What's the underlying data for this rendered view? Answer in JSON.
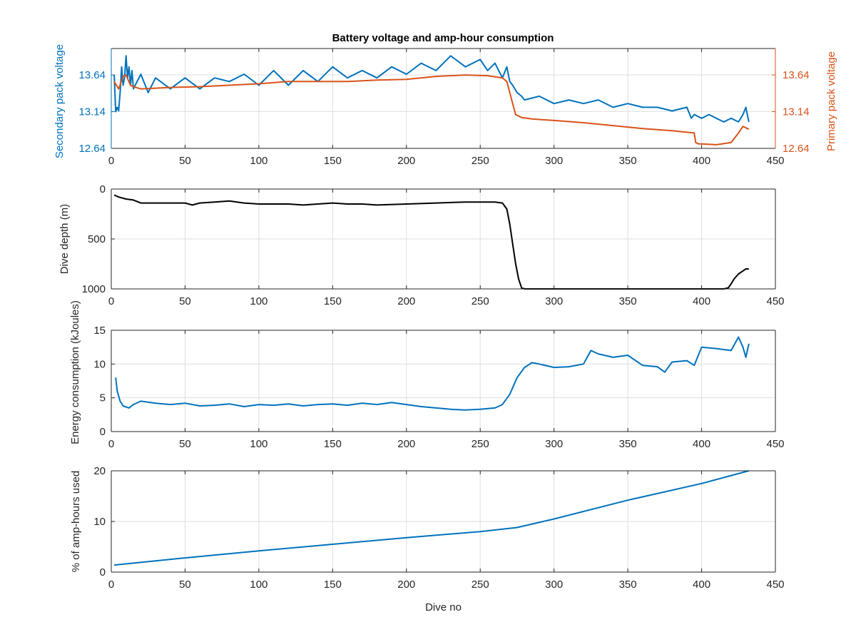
{
  "figure": {
    "title": "Battery voltage and amp-hour consumption",
    "xlabel_bottom": "Dive no"
  },
  "colors": {
    "secondary": "#0072BD",
    "primary": "#D95319",
    "depth": "#000000",
    "axis": "#262626",
    "grid": "#dfdfdf"
  },
  "chart_data": [
    {
      "type": "line",
      "title": "Battery voltage and amp-hour consumption",
      "xlabel": "",
      "xlim": [
        0,
        450
      ],
      "xticks": [
        0,
        50,
        100,
        150,
        200,
        250,
        300,
        350,
        400,
        450
      ],
      "grid": true,
      "left_axis": {
        "ylabel": "Secondary pack voltage",
        "ylim": [
          12.64,
          14.0
        ],
        "yticks": [
          "12.64",
          "13.14",
          "13.64"
        ]
      },
      "right_axis": {
        "ylabel": "Primary pack voltage",
        "ylim": [
          12.64,
          14.0
        ],
        "yticks": [
          "12.64",
          "13.14",
          "13.64"
        ]
      },
      "series": [
        {
          "axis": "left",
          "x": [
            2,
            3,
            4,
            5,
            6,
            7,
            8,
            9,
            10,
            11,
            12,
            13,
            14,
            15,
            20,
            25,
            30,
            40,
            50,
            60,
            70,
            80,
            90,
            100,
            110,
            120,
            130,
            140,
            150,
            160,
            170,
            180,
            190,
            200,
            210,
            220,
            230,
            240,
            250,
            255,
            260,
            265,
            268,
            270,
            272,
            275,
            278,
            280,
            290,
            300,
            310,
            320,
            330,
            340,
            350,
            360,
            370,
            380,
            390,
            393,
            395,
            400,
            405,
            410,
            415,
            420,
            425,
            428,
            430,
            432
          ],
          "y": [
            13.64,
            13.14,
            13.2,
            13.15,
            13.4,
            13.75,
            13.5,
            13.6,
            13.9,
            13.6,
            13.75,
            13.5,
            13.7,
            13.45,
            13.65,
            13.4,
            13.6,
            13.45,
            13.6,
            13.45,
            13.6,
            13.55,
            13.65,
            13.5,
            13.7,
            13.5,
            13.7,
            13.55,
            13.75,
            13.6,
            13.7,
            13.6,
            13.75,
            13.65,
            13.8,
            13.7,
            13.9,
            13.75,
            13.85,
            13.7,
            13.8,
            13.6,
            13.75,
            13.55,
            13.5,
            13.4,
            13.35,
            13.3,
            13.35,
            13.25,
            13.3,
            13.25,
            13.3,
            13.2,
            13.25,
            13.2,
            13.2,
            13.15,
            13.2,
            13.05,
            13.1,
            13.05,
            13.1,
            13.05,
            13.0,
            13.05,
            13.0,
            13.1,
            13.2,
            13.0
          ]
        },
        {
          "axis": "right",
          "x": [
            2,
            5,
            8,
            10,
            13,
            15,
            20,
            40,
            60,
            80,
            100,
            120,
            140,
            160,
            180,
            200,
            220,
            240,
            255,
            265,
            268,
            270,
            272,
            274,
            276,
            278,
            285,
            300,
            320,
            340,
            360,
            380,
            390,
            395,
            396,
            398,
            400,
            410,
            420,
            425,
            428,
            430,
            432
          ],
          "y": [
            13.55,
            13.45,
            13.62,
            13.64,
            13.5,
            13.48,
            13.45,
            13.47,
            13.48,
            13.5,
            13.52,
            13.55,
            13.55,
            13.55,
            13.57,
            13.58,
            13.62,
            13.64,
            13.63,
            13.6,
            13.55,
            13.4,
            13.25,
            13.1,
            13.08,
            13.06,
            13.04,
            13.02,
            12.99,
            12.95,
            12.91,
            12.88,
            12.86,
            12.85,
            12.72,
            12.7,
            12.7,
            12.69,
            12.72,
            12.85,
            12.94,
            12.92,
            12.9
          ]
        }
      ]
    },
    {
      "type": "line",
      "xlabel": "",
      "ylabel": "Dive depth (m)",
      "xlim": [
        0,
        450
      ],
      "ylim": [
        0,
        1000
      ],
      "y_reversed": true,
      "xticks": [
        0,
        50,
        100,
        150,
        200,
        250,
        300,
        350,
        400,
        450
      ],
      "yticks": [
        0,
        500,
        1000
      ],
      "ytick_labels": [
        "0",
        "500",
        "1000"
      ],
      "grid": true,
      "series": [
        {
          "x": [
            2,
            5,
            10,
            15,
            20,
            30,
            40,
            50,
            55,
            60,
            70,
            80,
            90,
            100,
            110,
            120,
            130,
            140,
            150,
            160,
            170,
            180,
            200,
            220,
            240,
            250,
            260,
            265,
            268,
            270,
            272,
            274,
            276,
            278,
            280,
            290,
            300,
            320,
            340,
            360,
            380,
            400,
            410,
            415,
            418,
            420,
            422,
            425,
            428,
            430,
            432
          ],
          "y": [
            60,
            80,
            100,
            110,
            140,
            140,
            140,
            140,
            160,
            140,
            130,
            120,
            140,
            150,
            150,
            150,
            160,
            150,
            140,
            150,
            150,
            160,
            150,
            140,
            130,
            130,
            130,
            140,
            200,
            350,
            550,
            750,
            900,
            990,
            1000,
            1000,
            1000,
            1000,
            1000,
            1000,
            1000,
            1000,
            1000,
            1000,
            990,
            950,
            900,
            850,
            820,
            800,
            800
          ]
        }
      ]
    },
    {
      "type": "line",
      "xlabel": "",
      "ylabel": "Energy consumption (kJoules)",
      "xlim": [
        0,
        450
      ],
      "ylim": [
        0,
        15
      ],
      "xticks": [
        0,
        50,
        100,
        150,
        200,
        250,
        300,
        350,
        400,
        450
      ],
      "yticks": [
        0,
        5,
        10,
        15
      ],
      "grid": true,
      "series": [
        {
          "x": [
            3,
            4,
            6,
            8,
            12,
            15,
            20,
            30,
            40,
            50,
            60,
            70,
            80,
            90,
            100,
            110,
            120,
            130,
            140,
            150,
            160,
            170,
            180,
            190,
            200,
            210,
            220,
            230,
            240,
            250,
            260,
            265,
            270,
            275,
            280,
            285,
            290,
            300,
            310,
            320,
            325,
            330,
            340,
            350,
            360,
            370,
            375,
            380,
            390,
            395,
            400,
            410,
            420,
            425,
            428,
            430,
            432
          ],
          "y": [
            8,
            6,
            4.5,
            3.8,
            3.5,
            4.0,
            4.5,
            4.2,
            4.0,
            4.2,
            3.8,
            3.9,
            4.1,
            3.7,
            4.0,
            3.9,
            4.1,
            3.8,
            4.0,
            4.1,
            3.9,
            4.2,
            4.0,
            4.3,
            4.0,
            3.7,
            3.5,
            3.3,
            3.2,
            3.3,
            3.5,
            4.0,
            5.5,
            8.0,
            9.5,
            10.2,
            10.0,
            9.5,
            9.6,
            10.0,
            12.0,
            11.5,
            11.0,
            11.3,
            9.8,
            9.6,
            8.8,
            10.3,
            10.5,
            9.8,
            12.5,
            12.3,
            12.0,
            14.0,
            12.5,
            11.0,
            13.0
          ]
        }
      ]
    },
    {
      "type": "line",
      "xlabel": "Dive no",
      "ylabel": "% of amp-hours used",
      "xlim": [
        0,
        450
      ],
      "ylim": [
        0,
        20
      ],
      "xticks": [
        0,
        50,
        100,
        150,
        200,
        250,
        300,
        350,
        400,
        450
      ],
      "yticks": [
        0,
        10,
        20
      ],
      "grid": true,
      "series": [
        {
          "x": [
            2,
            50,
            100,
            150,
            200,
            250,
            275,
            300,
            350,
            400,
            432
          ],
          "y": [
            1.4,
            2.8,
            4.2,
            5.5,
            6.8,
            8.0,
            8.8,
            10.5,
            14.2,
            17.5,
            20.0
          ]
        }
      ]
    }
  ]
}
